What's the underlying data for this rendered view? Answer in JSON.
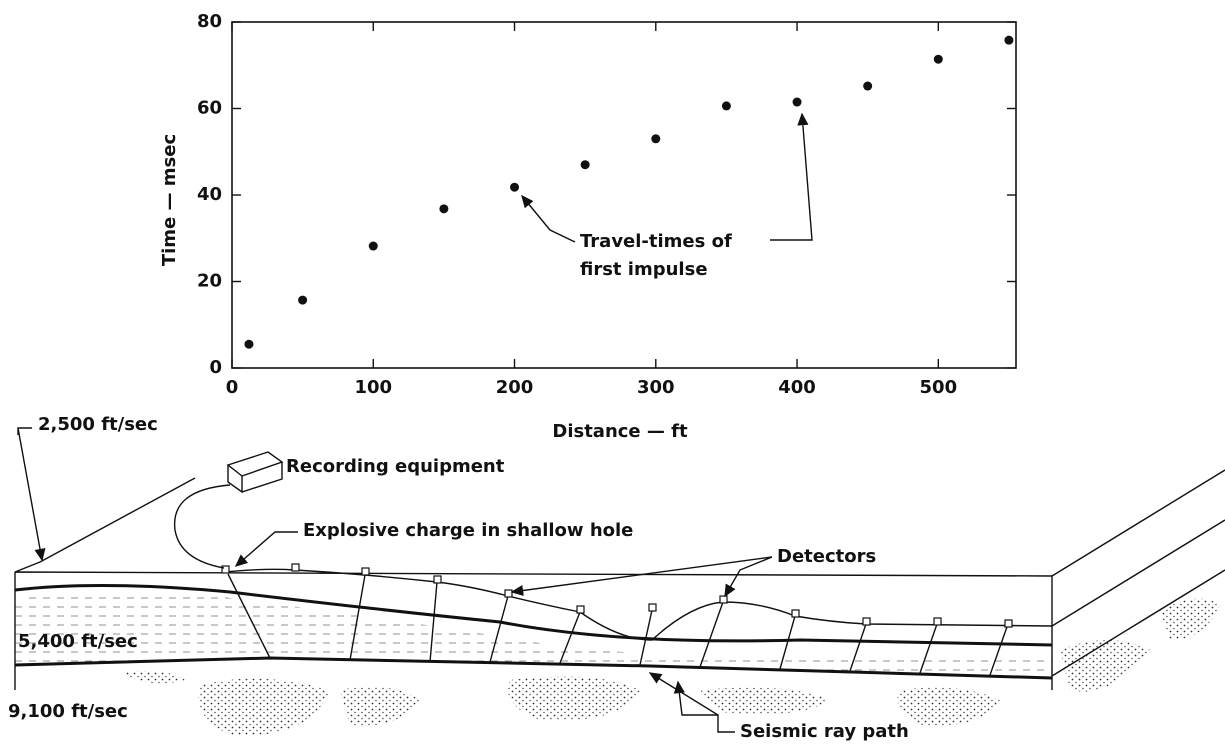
{
  "chart_data": {
    "type": "scatter",
    "x_label": "Distance — ft",
    "y_label": "Time — msec",
    "x": [
      12,
      50,
      100,
      150,
      200,
      250,
      300,
      350,
      400,
      450,
      500,
      550
    ],
    "values": [
      5.5,
      15.7,
      28.2,
      36.8,
      41.8,
      47,
      53,
      60.6,
      61.5,
      65.2,
      71.4,
      75.8
    ],
    "color": "#111111",
    "xlim": [
      0,
      555
    ],
    "xticks": [
      0,
      100,
      200,
      300,
      400,
      500
    ],
    "ylim": [
      0,
      80
    ],
    "yticks": [
      0,
      20,
      40,
      60,
      80
    ],
    "annotation": [
      "Travel-times of",
      "first impulse"
    ]
  },
  "diagram": {
    "labels": {
      "top_layer": "2,500 ft/sec",
      "recorder": "Recording equipment",
      "charge": "Explosive charge in shallow hole",
      "detectors": "Detectors",
      "middle_layer": "5,400 ft/sec",
      "bottom_layer": "9,100 ft/sec",
      "ray_path": "Seismic ray path"
    }
  }
}
